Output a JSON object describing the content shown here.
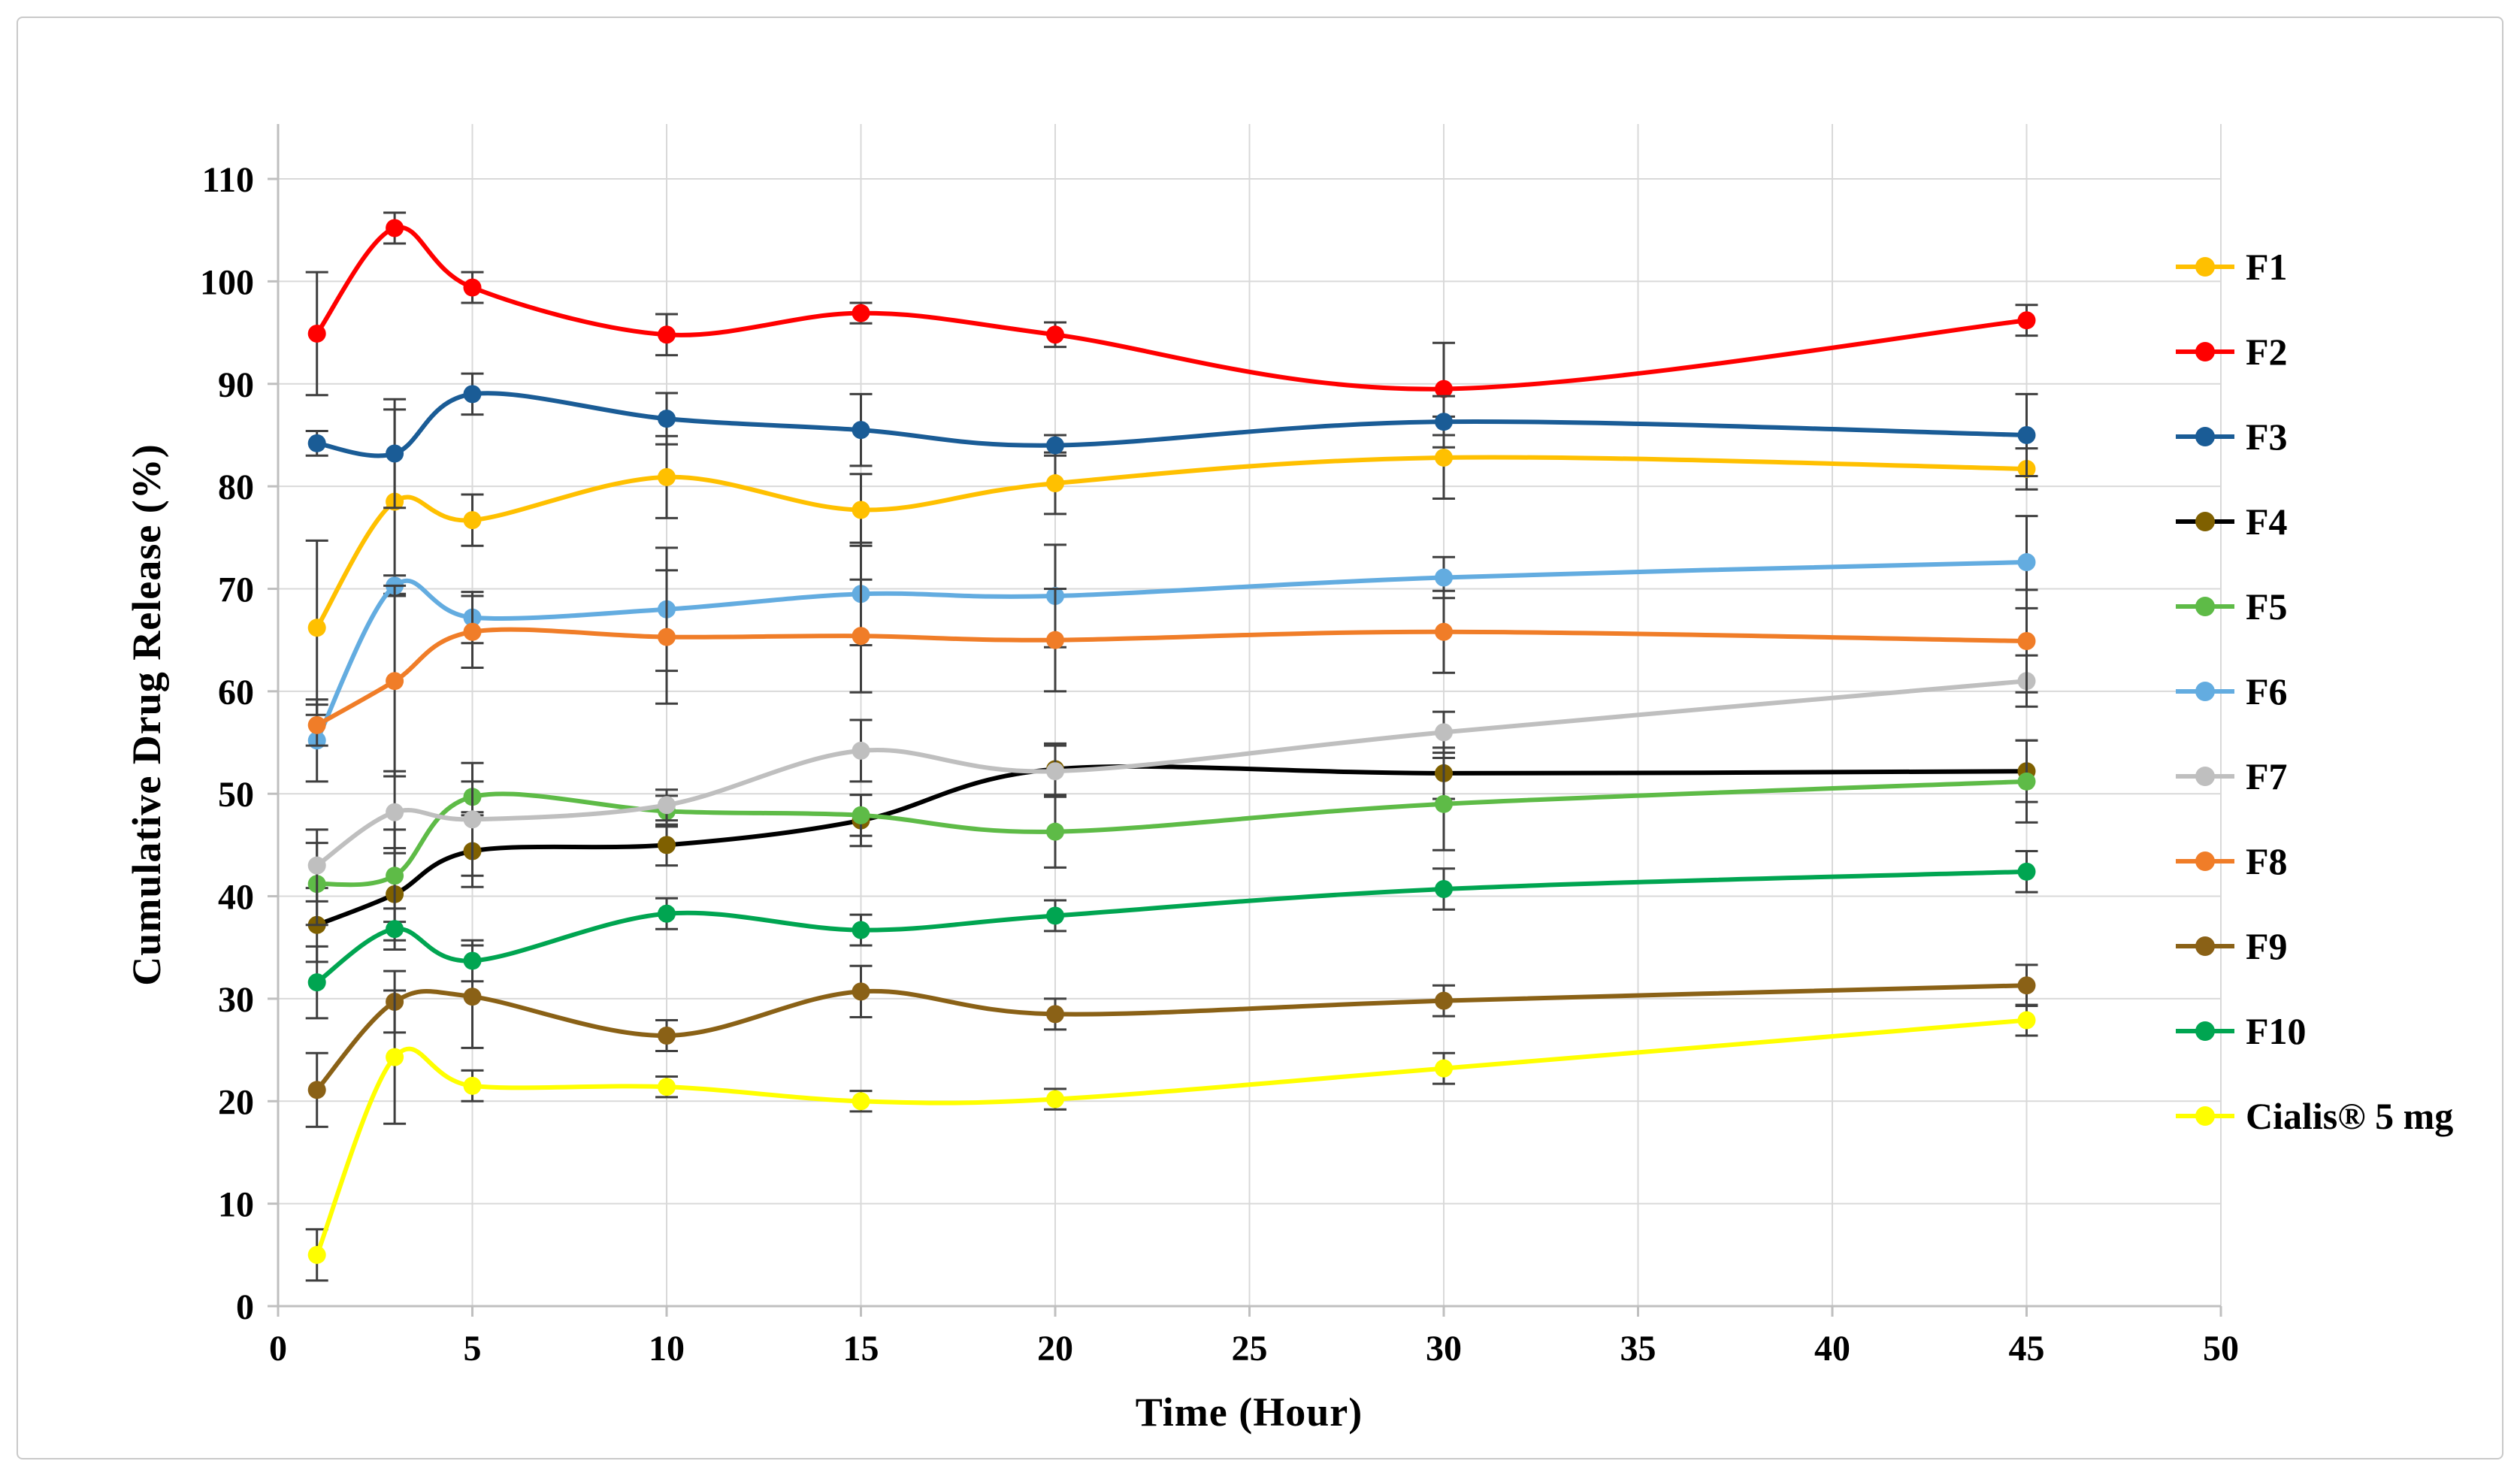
{
  "figure": {
    "background": "#FFFFFF",
    "border_color": "#C9C9C9"
  },
  "chart_data": {
    "type": "line",
    "title": "",
    "xlabel": "Time (Hour)",
    "ylabel": "Cumulative Drug Release (%)",
    "x": [
      1,
      3,
      5,
      10,
      15,
      20,
      30,
      45
    ],
    "x_ticks": [
      0,
      5,
      10,
      15,
      20,
      25,
      30,
      35,
      40,
      45,
      50
    ],
    "y_ticks": [
      0,
      10,
      20,
      30,
      40,
      50,
      60,
      70,
      80,
      90,
      100,
      110
    ],
    "xlim": [
      0,
      50
    ],
    "ylim": [
      0,
      110
    ],
    "grid": true,
    "grid_color": "#D9D9D9",
    "axis_color": "#BFBFBF",
    "error_bar_color": "#3F3F3F",
    "legend_position": "right",
    "smooth_lines": true,
    "series": [
      {
        "name": "F1",
        "line_color": "#FFC000",
        "marker_color": "#FFC000",
        "values": [
          66.2,
          78.5,
          76.7,
          80.9,
          77.7,
          80.3,
          82.8,
          81.7
        ],
        "errors": [
          8.5,
          9.0,
          2.5,
          4.0,
          3.5,
          3.0,
          4.0,
          2.0
        ]
      },
      {
        "name": "F2",
        "line_color": "#FF0000",
        "marker_color": "#FF0000",
        "values": [
          94.9,
          105.2,
          99.4,
          94.8,
          96.9,
          94.8,
          89.5,
          96.2
        ],
        "errors": [
          6.0,
          1.5,
          1.5,
          2.0,
          1.0,
          1.2,
          4.5,
          1.5
        ]
      },
      {
        "name": "F3",
        "line_color": "#1A5C96",
        "marker_color": "#1A5C96",
        "values": [
          84.2,
          83.2,
          89.0,
          86.6,
          85.5,
          84.0,
          86.3,
          85.0
        ],
        "errors": [
          1.2,
          5.3,
          2.0,
          2.5,
          3.5,
          1.0,
          2.5,
          4.0
        ]
      },
      {
        "name": "F4",
        "line_color": "#000000",
        "marker_color": "#7F6000",
        "values": [
          37.2,
          40.2,
          44.4,
          45.0,
          47.4,
          52.4,
          52.0,
          52.2
        ],
        "errors": [
          3.6,
          4.5,
          3.5,
          2.0,
          2.5,
          2.5,
          2.5,
          3.0
        ]
      },
      {
        "name": "F5",
        "line_color": "#5EBB47",
        "marker_color": "#5EBB47",
        "values": [
          41.2,
          42.0,
          49.7,
          48.3,
          47.9,
          46.3,
          49.0,
          51.2
        ],
        "errors": [
          4.0,
          4.5,
          1.5,
          1.5,
          2.0,
          3.5,
          4.5,
          4.0
        ]
      },
      {
        "name": "F6",
        "line_color": "#63ACE0",
        "marker_color": "#63ACE0",
        "values": [
          55.2,
          70.3,
          67.2,
          68.0,
          69.5,
          69.3,
          71.1,
          72.6
        ],
        "errors": [
          4.0,
          1.0,
          2.5,
          6.0,
          5.0,
          5.0,
          2.0,
          4.5
        ]
      },
      {
        "name": "F7",
        "line_color": "#BFBFBF",
        "marker_color": "#BFBFBF",
        "values": [
          43.0,
          48.2,
          47.5,
          48.9,
          54.2,
          52.2,
          56.0,
          61.0
        ],
        "errors": [
          3.5,
          4.0,
          5.5,
          1.5,
          3.0,
          2.5,
          2.0,
          2.5
        ]
      },
      {
        "name": "F8",
        "line_color": "#F07D28",
        "marker_color": "#F07D28",
        "values": [
          56.7,
          61.0,
          65.8,
          65.3,
          65.4,
          65.0,
          65.8,
          64.9
        ],
        "errors": [
          2.0,
          9.3,
          3.5,
          6.5,
          5.5,
          5.0,
          4.0,
          5.0
        ]
      },
      {
        "name": "F9",
        "line_color": "#8A6116",
        "marker_color": "#8A6116",
        "values": [
          21.1,
          29.7,
          30.2,
          26.4,
          30.7,
          28.5,
          29.8,
          31.3
        ],
        "errors": [
          3.6,
          3.0,
          5.0,
          1.5,
          2.5,
          1.5,
          1.5,
          2.0
        ]
      },
      {
        "name": "F10",
        "line_color": "#00A551",
        "marker_color": "#00A551",
        "values": [
          31.6,
          36.8,
          33.7,
          38.3,
          36.7,
          38.1,
          40.7,
          42.4
        ],
        "errors": [
          3.5,
          2.0,
          2.0,
          1.5,
          1.5,
          1.5,
          2.0,
          2.0
        ]
      },
      {
        "name": "Cialis® 5 mg",
        "line_color": "#FFFF00",
        "marker_color": "#FFFF00",
        "values": [
          5.0,
          24.3,
          21.5,
          21.4,
          20.0,
          20.2,
          23.2,
          27.9
        ],
        "errors": [
          2.5,
          6.5,
          1.5,
          1.0,
          1.0,
          1.0,
          1.5,
          1.5
        ]
      }
    ]
  }
}
